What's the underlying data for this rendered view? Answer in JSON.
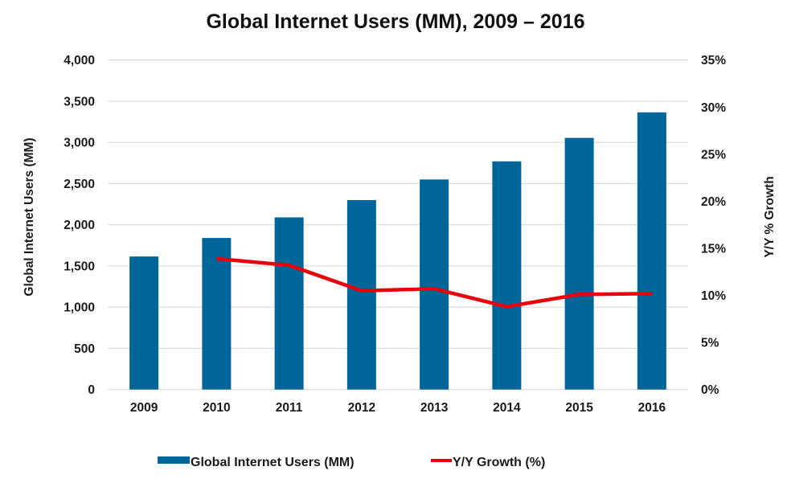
{
  "chart_data": {
    "type": "bar",
    "title": "Global Internet Users (MM), 2009 – 2016",
    "categories": [
      "2009",
      "2010",
      "2011",
      "2012",
      "2013",
      "2014",
      "2015",
      "2016"
    ],
    "series": [
      {
        "name": "Global Internet Users (MM)",
        "type": "bar",
        "axis": "left",
        "color": "#006699",
        "values": [
          1615,
          1840,
          2090,
          2300,
          2550,
          2770,
          3055,
          3365
        ]
      },
      {
        "name": "Y/Y Growth (%)",
        "type": "line",
        "axis": "right",
        "color": "#e8000b",
        "values": [
          null,
          13.9,
          13.2,
          10.5,
          10.7,
          8.8,
          10.1,
          10.2
        ]
      }
    ],
    "ylabel": "Global Internet Users (MM)",
    "ylabel_right": "Y/Y % Growth",
    "xlabel": "",
    "ylim": [
      0,
      4000
    ],
    "ylim_right": [
      0,
      35
    ],
    "yticks": [
      0,
      500,
      1000,
      1500,
      2000,
      2500,
      3000,
      3500,
      4000
    ],
    "ytick_labels": [
      "0",
      "500",
      "1,000",
      "1,500",
      "2,000",
      "2,500",
      "3,000",
      "3,500",
      "4,000"
    ],
    "yticks_right": [
      0,
      5,
      10,
      15,
      20,
      25,
      30,
      35
    ],
    "ytick_labels_right": [
      "0%",
      "5%",
      "10%",
      "15%",
      "20%",
      "25%",
      "30%",
      "35%"
    ],
    "grid": true,
    "legend_position": "bottom"
  }
}
